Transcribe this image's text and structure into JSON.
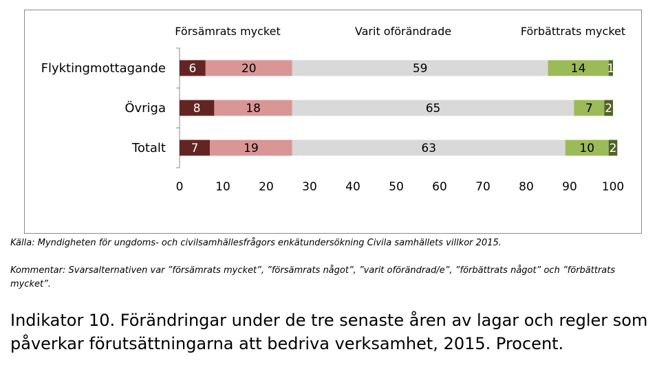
{
  "chart_data": {
    "type": "bar",
    "orientation": "horizontal",
    "stacked": true,
    "categories": [
      "Flyktingmottagande",
      "Övriga",
      "Totalt"
    ],
    "series": [
      {
        "name": "försämrats mycket",
        "values": [
          6,
          8,
          7
        ],
        "color": "#632523"
      },
      {
        "name": "försämrats något",
        "values": [
          20,
          18,
          19
        ],
        "color": "#d99694"
      },
      {
        "name": "varit oförändrad/e",
        "values": [
          59,
          65,
          63
        ],
        "color": "#d9d9d9"
      },
      {
        "name": "förbättrats något",
        "values": [
          14,
          7,
          10
        ],
        "color": "#9bbb59"
      },
      {
        "name": "förbättrats mycket",
        "values": [
          1,
          2,
          2
        ],
        "color": "#4f6228"
      }
    ],
    "header_labels": [
      "Försämrats mycket",
      "Varit oförändrade",
      "Förbättrats mycket"
    ],
    "xlim": [
      0,
      100
    ],
    "xticks": [
      0,
      10,
      20,
      30,
      40,
      50,
      60,
      70,
      80,
      90,
      100
    ],
    "label_colors": [
      "#ffffff",
      "#000000",
      "#000000",
      "#000000",
      "#ffffff"
    ]
  },
  "notes": {
    "source": "Källa: Myndigheten för ungdoms- och civilsamhällesfrågors enkätundersökning Civila samhällets villkor 2015.",
    "comment": "Kommentar: Svarsalternativen var ”försämrats mycket”, ”försämrats något”, ”varit oförändrad/e”, ”förbättrats något” och ”förbättrats mycket”."
  },
  "caption": "Indikator 10. Förändringar under de tre senaste åren av lagar och regler som påverkar förutsättningarna att bedriva verksamhet, 2015. Procent."
}
